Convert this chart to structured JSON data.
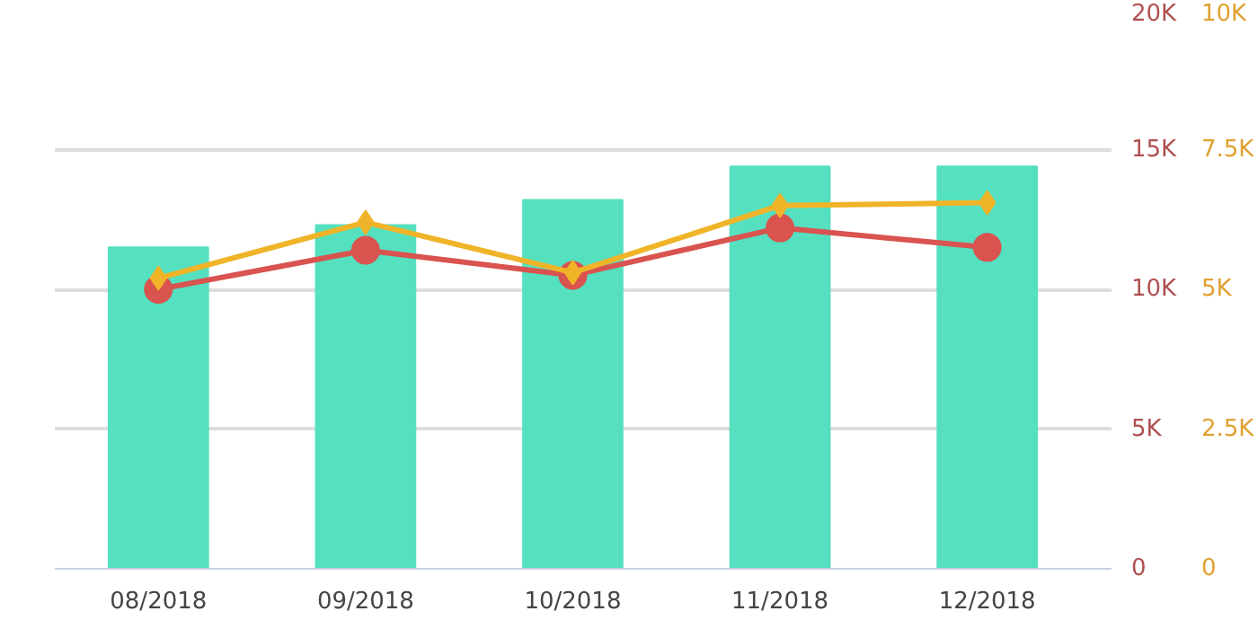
{
  "chart_data": {
    "type": "bar",
    "categories": [
      "08/2018",
      "09/2018",
      "10/2018",
      "11/2018",
      "12/2018"
    ],
    "ylim": [
      0,
      20000
    ],
    "yticks": [
      {
        "value": 0,
        "label": "0"
      },
      {
        "value": 5000,
        "label": "5K"
      },
      {
        "value": 10000,
        "label": "10K"
      },
      {
        "value": 15000,
        "label": "15K"
      },
      {
        "value": 20000,
        "label": "20K"
      }
    ],
    "y2lim": [
      0,
      10000
    ],
    "y2ticks": [
      {
        "value": 0,
        "label": "0"
      },
      {
        "value": 2500,
        "label": "2.5K"
      },
      {
        "value": 5000,
        "label": "5K"
      },
      {
        "value": 7500,
        "label": "7.5K"
      },
      {
        "value": 10000,
        "label": "10K"
      }
    ],
    "grid": "y",
    "series": [
      {
        "color": "#55e0c0",
        "values": [
          11500,
          12300,
          13200,
          14400,
          14400
        ]
      },
      {
        "type": "line",
        "color": "#d9534f",
        "marker": "circle",
        "values": [
          10000,
          11400,
          10500,
          12200,
          11500
        ]
      },
      {
        "type": "line",
        "color": "#f0b429",
        "marker": "diamond",
        "axis": "y2",
        "values": [
          5200,
          6200,
          5300,
          6500,
          6550
        ]
      }
    ]
  }
}
